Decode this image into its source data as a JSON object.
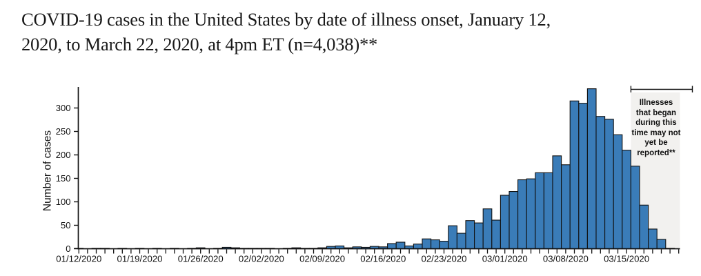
{
  "page": {
    "title": "COVID-19 cases in the United States by date of illness onset, January 12, 2020, to March 22, 2020, at 4pm ET (n=4,038)**",
    "title_line1": "COVID-19 cases in the United States by date of illness onset, January 12,",
    "title_line2": "2020, to March 22, 2020, at 4pm ET (n=4,038)**"
  },
  "chart_data": {
    "type": "bar",
    "title": "COVID-19 cases in the United States by date of illness onset, January 12, 2020, to March 22, 2020, at 4pm ET (n=4,038)**",
    "xlabel": "",
    "ylabel": "Number of cases",
    "total_n": "4,038",
    "ylim": [
      0,
      335
    ],
    "yticks": [
      0,
      50,
      100,
      150,
      200,
      250,
      300
    ],
    "grid": false,
    "legend": "none",
    "bar_color": "#3a7cb8",
    "bar_outline_color": "#111111",
    "axis_color": "#111111",
    "xtick_labels": [
      "01/12/2020",
      "01/19/2020",
      "01/26/2020",
      "02/02/2020",
      "02/09/2020",
      "02/16/2020",
      "02/23/2020",
      "03/01/2020",
      "03/08/2020",
      "03/15/2020"
    ],
    "x": [
      "01/12/2020",
      "01/13/2020",
      "01/14/2020",
      "01/15/2020",
      "01/16/2020",
      "01/17/2020",
      "01/18/2020",
      "01/19/2020",
      "01/20/2020",
      "01/21/2020",
      "01/22/2020",
      "01/23/2020",
      "01/24/2020",
      "01/25/2020",
      "01/26/2020",
      "01/27/2020",
      "01/28/2020",
      "01/29/2020",
      "01/30/2020",
      "01/31/2020",
      "02/01/2020",
      "02/02/2020",
      "02/03/2020",
      "02/04/2020",
      "02/05/2020",
      "02/06/2020",
      "02/07/2020",
      "02/08/2020",
      "02/09/2020",
      "02/10/2020",
      "02/11/2020",
      "02/12/2020",
      "02/13/2020",
      "02/14/2020",
      "02/15/2020",
      "02/16/2020",
      "02/17/2020",
      "02/18/2020",
      "02/19/2020",
      "02/20/2020",
      "02/21/2020",
      "02/22/2020",
      "02/23/2020",
      "02/24/2020",
      "02/25/2020",
      "02/26/2020",
      "02/27/2020",
      "02/28/2020",
      "02/29/2020",
      "03/01/2020",
      "03/02/2020",
      "03/03/2020",
      "03/04/2020",
      "03/05/2020",
      "03/06/2020",
      "03/07/2020",
      "03/08/2020",
      "03/09/2020",
      "03/10/2020",
      "03/11/2020",
      "03/12/2020",
      "03/13/2020",
      "03/14/2020",
      "03/15/2020",
      "03/16/2020",
      "03/17/2020",
      "03/18/2020",
      "03/19/2020",
      "03/20/2020",
      "03/21/2020",
      "03/22/2020"
    ],
    "values": [
      1,
      0,
      1,
      1,
      0,
      1,
      0,
      1,
      0,
      1,
      0,
      1,
      0,
      1,
      2,
      0,
      1,
      3,
      2,
      1,
      1,
      1,
      1,
      0,
      1,
      2,
      1,
      1,
      2,
      5,
      6,
      2,
      4,
      3,
      5,
      4,
      11,
      14,
      6,
      10,
      21,
      19,
      16,
      49,
      33,
      60,
      55,
      85,
      61,
      114,
      122,
      147,
      149,
      162,
      162,
      198,
      179,
      315,
      310,
      341,
      282,
      276,
      243,
      210,
      176,
      93,
      42,
      20,
      1,
      0,
      0
    ],
    "annotation": {
      "text": "Illnesses that began during this time may not yet be reported**",
      "lines": [
        "Illnesses",
        "that began",
        "during this",
        "time may not",
        "yet be",
        "reported**"
      ],
      "shaded_from_date": "03/16/2020",
      "shaded_color": "#f2f1ef"
    }
  }
}
